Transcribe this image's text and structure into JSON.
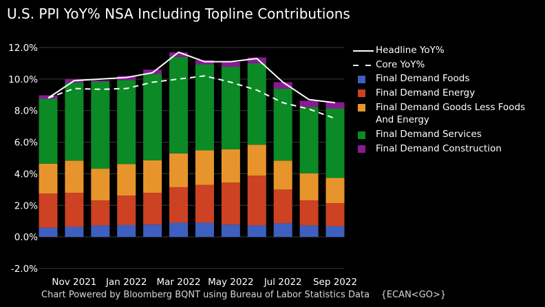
{
  "title": "U.S. PPI YoY% NSA Including Topline Contributions",
  "footer": "Chart Powered by Bloomberg BQNT using Bureau of Labor Statistics Data    {ECAN<GO>}",
  "chart_data": {
    "type": "bar",
    "stacked": true,
    "title": "U.S. PPI YoY% NSA Including Topline Contributions",
    "categories": [
      "Oct 2021",
      "Nov 2021",
      "Dec 2021",
      "Jan 2022",
      "Feb 2022",
      "Mar 2022",
      "Apr 2022",
      "May 2022",
      "Jun 2022",
      "Jul 2022",
      "Aug 2022",
      "Sep 2022"
    ],
    "x_tick_labels": [
      "Nov 2021",
      "Jan 2022",
      "Mar 2022",
      "May 2022",
      "Jul 2022",
      "Sep 2022"
    ],
    "y_tick_labels": [
      "-2.0%",
      "0.0%",
      "2.0%",
      "4.0%",
      "6.0%",
      "8.0%",
      "10.0%",
      "12.0%"
    ],
    "ylim": [
      -2,
      12
    ],
    "grid": true,
    "legend_position": "right",
    "series": [
      {
        "name": "Final Demand Foods",
        "kind": "bar",
        "color": "#3d5fbf",
        "values": [
          0.58,
          0.64,
          0.73,
          0.75,
          0.78,
          0.9,
          0.9,
          0.78,
          0.73,
          0.86,
          0.73,
          0.68
        ]
      },
      {
        "name": "Final Demand Energy",
        "kind": "bar",
        "color": "#cc4223",
        "values": [
          2.17,
          2.15,
          1.58,
          1.87,
          2.01,
          2.25,
          2.4,
          2.66,
          3.15,
          2.14,
          1.58,
          1.46
        ]
      },
      {
        "name": "Final Demand Goods Less Foods And Energy",
        "kind": "bar",
        "color": "#e8942c",
        "values": [
          1.89,
          2.04,
          2.01,
          1.99,
          2.06,
          2.14,
          2.18,
          2.11,
          1.96,
          1.83,
          1.72,
          1.6
        ]
      },
      {
        "name": "Final Demand Services",
        "kind": "bar",
        "color": "#0b8a25",
        "values": [
          4.11,
          4.94,
          5.52,
          5.33,
          5.47,
          6.11,
          5.45,
          5.23,
          5.16,
          4.57,
          4.21,
          4.4
        ]
      },
      {
        "name": "Final Demand Construction",
        "kind": "bar",
        "color": "#8a1a94",
        "values": [
          0.22,
          0.22,
          0.07,
          0.26,
          0.28,
          0.29,
          0.27,
          0.3,
          0.37,
          0.4,
          0.39,
          0.39
        ]
      },
      {
        "name": "Headline YoY%",
        "kind": "line",
        "style": "solid",
        "color": "#ffffff",
        "values": [
          8.8,
          9.9,
          10.0,
          10.1,
          10.4,
          11.7,
          11.1,
          11.1,
          11.3,
          9.8,
          8.7,
          8.5
        ]
      },
      {
        "name": "Core YoY%",
        "kind": "line",
        "style": "dashed",
        "color": "#ffffff",
        "values": [
          8.8,
          9.4,
          9.35,
          9.4,
          9.8,
          10.0,
          10.2,
          9.8,
          9.3,
          8.5,
          8.1,
          7.5
        ]
      }
    ]
  }
}
